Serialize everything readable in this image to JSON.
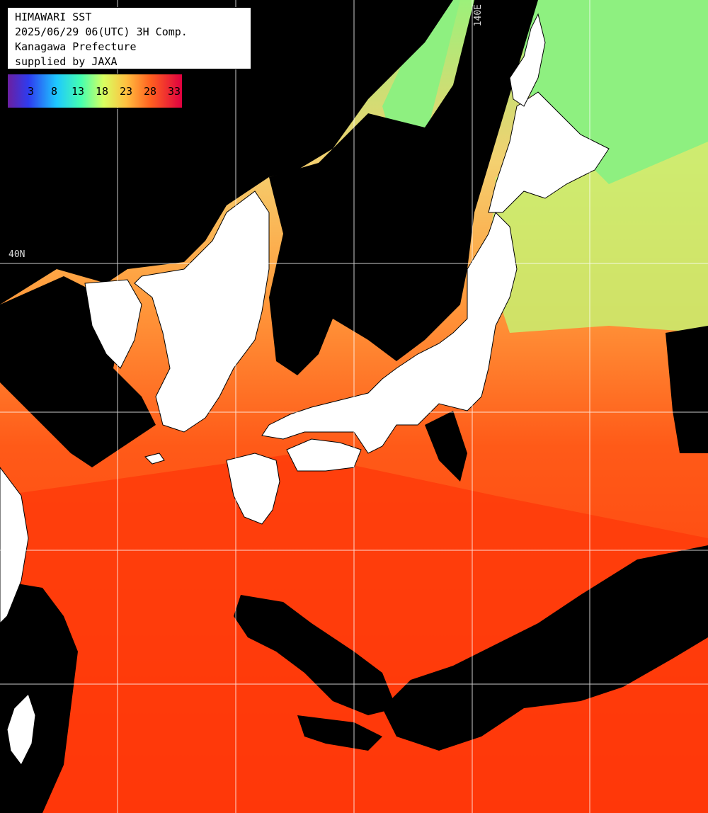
{
  "map": {
    "title_lines": [
      "HIMAWARI SST",
      "2025/06/29 06(UTC) 3H Comp.",
      "Kanagawa Prefecture",
      "supplied by JAXA"
    ],
    "colorbar": {
      "ticks": [
        "3",
        "8",
        "13",
        "18",
        "23",
        "28",
        "33"
      ],
      "colors": [
        "#6b1fa0",
        "#2e3cf0",
        "#1ec8ff",
        "#45ffb0",
        "#d8ff60",
        "#ffc040",
        "#ff6020",
        "#e00020"
      ]
    },
    "grid_labels": {
      "lat_40": "40N",
      "lon_140": "140E"
    },
    "colors": {
      "land": "#ffffff",
      "cloud_no_data": "#000000",
      "sst_warm": "#ff3f0a",
      "sst_mid": "#ffa040",
      "sst_cool": "#a8f060",
      "grid": "#ffffff"
    }
  }
}
